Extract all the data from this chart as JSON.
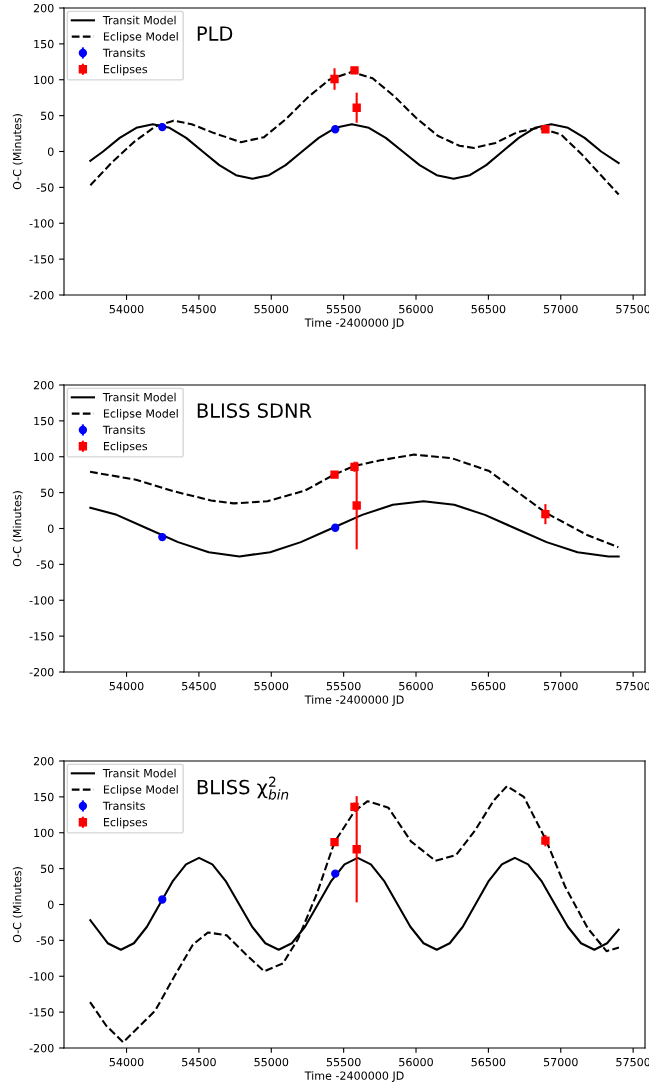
{
  "chart_data": [
    {
      "type": "scatter",
      "annotations": [
        "PLD"
      ],
      "xlabel": "Time -2400000 JD",
      "ylabel": "O-C (Minutes)",
      "xlim": [
        53568,
        57582
      ],
      "xticks": [
        54000,
        54500,
        55000,
        55500,
        56000,
        56500,
        57000,
        57500
      ],
      "ylim": [
        -200,
        200
      ],
      "yticks": [
        -200,
        -150,
        -100,
        -50,
        0,
        50,
        100,
        150,
        200
      ],
      "grid": false,
      "legend": "top left",
      "series": [
        {
          "name": "Transit Model",
          "type": "line",
          "line_style": "solid",
          "marker": "none",
          "color": "#000000",
          "x": [
            53750,
            53838,
            53953,
            54068,
            54182,
            54297,
            54412,
            54526,
            54641,
            54756,
            54870,
            54984,
            55099,
            55213,
            55328,
            55443,
            55557,
            55674,
            55791,
            55908,
            56025,
            56143,
            56260,
            56372,
            56485,
            56597,
            56710,
            56822,
            56935,
            57050,
            57165,
            57279,
            57400
          ],
          "values": [
            -13,
            0,
            19,
            33,
            38,
            33,
            19,
            0,
            -19,
            -33,
            -38,
            -33,
            -19,
            0,
            19,
            33,
            38,
            33,
            19,
            0,
            -19,
            -33,
            -38,
            -33,
            -19,
            0,
            19,
            33,
            38,
            33,
            19,
            0,
            -16
          ]
        },
        {
          "name": "Eclipse Model",
          "type": "line",
          "line_style": "dashed",
          "marker": "none",
          "color": "#000000",
          "x": [
            53750,
            53900,
            54050,
            54200,
            54325,
            54450,
            54600,
            54792,
            54950,
            55100,
            55250,
            55400,
            55557,
            55700,
            55850,
            56000,
            56150,
            56300,
            56401,
            56550,
            56700,
            56844,
            57000,
            57150,
            57300,
            57400
          ],
          "values": [
            -47,
            -15,
            13,
            35,
            43,
            38,
            26,
            13,
            20,
            45,
            75,
            100,
            111,
            102,
            77,
            47,
            22,
            8,
            5,
            12,
            27,
            33,
            24,
            -5,
            -38,
            -60
          ]
        },
        {
          "name": "Transits",
          "marker": "circle",
          "color": "#0000ff",
          "x": [
            54247,
            55442
          ],
          "values": [
            34,
            31
          ],
          "errors": [
            null,
            null
          ]
        },
        {
          "name": "Eclipses",
          "marker": "square",
          "color": "#ff0000",
          "x": [
            55437,
            55575,
            55590,
            56894
          ],
          "values": [
            101,
            113,
            61,
            31
          ],
          "errors": [
            15,
            5,
            21,
            4
          ]
        }
      ]
    },
    {
      "type": "scatter",
      "annotations": [
        "BLISS SDNR"
      ],
      "xlabel": "Time -2400000 JD",
      "ylabel": "O-C (Minutes)",
      "xlim": [
        53568,
        57582
      ],
      "xticks": [
        54000,
        54500,
        55000,
        55500,
        56000,
        56500,
        57000,
        57500
      ],
      "ylim": [
        -200,
        200
      ],
      "yticks": [
        -200,
        -150,
        -100,
        -50,
        0,
        50,
        100,
        150,
        200
      ],
      "grid": false,
      "legend": "top left",
      "series": [
        {
          "name": "Transit Model",
          "type": "line",
          "line_style": "solid",
          "marker": "none",
          "color": "#000000",
          "x": [
            53750,
            53932,
            54144,
            54356,
            54568,
            54780,
            54992,
            55204,
            55416,
            55628,
            55840,
            56052,
            56264,
            56476,
            56688,
            56902,
            57116,
            57330,
            57400
          ],
          "values": [
            29,
            19,
            0,
            -19,
            -33,
            -39,
            -33,
            -19,
            0,
            19,
            33,
            38,
            33,
            19,
            0,
            -19,
            -33,
            -39,
            -39
          ]
        },
        {
          "name": "Eclipse Model",
          "type": "line",
          "line_style": "dashed",
          "marker": "none",
          "color": "#000000",
          "x": [
            53748,
            54065,
            54325,
            54584,
            54741,
            54974,
            55234,
            55434,
            55571,
            55753,
            55987,
            56247,
            56506,
            56896,
            57182,
            57398
          ],
          "values": [
            79,
            68,
            52,
            39,
            35,
            38,
            53,
            75,
            87,
            95,
            103,
            98,
            80,
            22,
            -9,
            -26
          ]
        },
        {
          "name": "Transits",
          "marker": "circle",
          "color": "#0000ff",
          "x": [
            54247,
            55442
          ],
          "values": [
            -12,
            1
          ],
          "errors": [
            null,
            null
          ]
        },
        {
          "name": "Eclipses",
          "marker": "square",
          "color": "#ff0000",
          "x": [
            55437,
            55575,
            55590,
            56894
          ],
          "values": [
            75,
            86,
            32,
            20
          ],
          "errors": [
            3,
            7,
            61,
            14
          ]
        }
      ]
    },
    {
      "type": "scatter",
      "annotations": [
        "BLISS χ$^{2}$$_{bin}$"
      ],
      "xlabel": "Time -2400000 JD",
      "ylabel": "O-C (Minutes)",
      "xlim": [
        53568,
        57582
      ],
      "xticks": [
        54000,
        54500,
        55000,
        55500,
        56000,
        56500,
        57000,
        57500
      ],
      "ylim": [
        -200,
        200
      ],
      "yticks": [
        -200,
        -150,
        -100,
        -50,
        0,
        50,
        100,
        150,
        200
      ],
      "grid": false,
      "legend": "top left",
      "series": [
        {
          "name": "Transit Model",
          "type": "line",
          "line_style": "solid",
          "marker": "none",
          "color": "#000000",
          "x": [
            53750,
            53870,
            53961,
            54051,
            54141,
            54231,
            54321,
            54411,
            54501,
            54593,
            54684,
            54776,
            54868,
            54959,
            55051,
            55142,
            55233,
            55324,
            55415,
            55506,
            55597,
            55688,
            55779,
            55870,
            55961,
            56052,
            56143,
            56233,
            56323,
            56413,
            56503,
            56593,
            56683,
            56774,
            56866,
            56957,
            57049,
            57140,
            57232,
            57320,
            57400
          ],
          "values": [
            -22,
            -54,
            -63,
            -54,
            -31,
            1,
            33,
            56,
            65,
            56,
            33,
            1,
            -31,
            -54,
            -63,
            -54,
            -31,
            1,
            33,
            56,
            65,
            56,
            33,
            1,
            -31,
            -54,
            -63,
            -54,
            -31,
            1,
            33,
            56,
            65,
            56,
            33,
            1,
            -31,
            -54,
            -63,
            -54,
            -35
          ]
        },
        {
          "name": "Eclipse Model",
          "type": "line",
          "line_style": "dashed",
          "marker": "none",
          "color": "#000000",
          "x": [
            53748,
            53860,
            53977,
            54198,
            54328,
            54458,
            54562,
            54692,
            54822,
            54951,
            55081,
            55185,
            55315,
            55437,
            55575,
            55666,
            55809,
            55965,
            56134,
            56277,
            56407,
            56537,
            56628,
            56745,
            56900,
            57030,
            57186,
            57316,
            57402
          ],
          "values": [
            -136,
            -169,
            -192,
            -148,
            -101,
            -56,
            -39,
            -43,
            -69,
            -93,
            -82,
            -48,
            15,
            87,
            130,
            144,
            135,
            88,
            61,
            69,
            103,
            145,
            165,
            150,
            89,
            25,
            -33,
            -65,
            -60
          ]
        },
        {
          "name": "Transits",
          "marker": "circle",
          "color": "#0000ff",
          "x": [
            54247,
            55442
          ],
          "values": [
            7,
            43
          ],
          "errors": [
            null,
            null
          ]
        },
        {
          "name": "Eclipses",
          "marker": "square",
          "color": "#ff0000",
          "x": [
            55437,
            55575,
            55590,
            56894
          ],
          "values": [
            87,
            136,
            77,
            89
          ],
          "errors": [
            4,
            6,
            74,
            8
          ]
        }
      ]
    }
  ]
}
